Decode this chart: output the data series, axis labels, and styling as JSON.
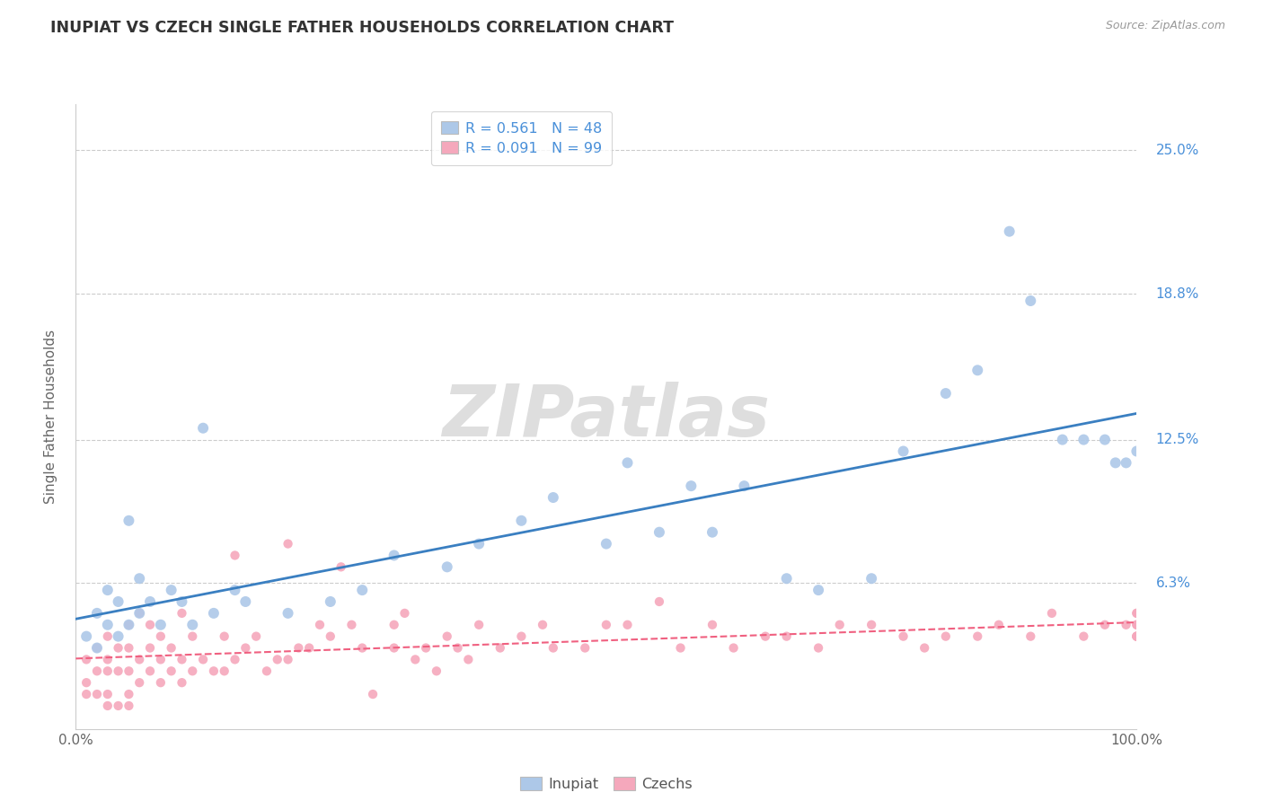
{
  "title": "INUPIAT VS CZECH SINGLE FATHER HOUSEHOLDS CORRELATION CHART",
  "source_text": "Source: ZipAtlas.com",
  "ylabel": "Single Father Households",
  "xlim": [
    0.0,
    100.0
  ],
  "ylim": [
    0.0,
    27.0
  ],
  "ytick_vals": [
    6.3,
    12.5,
    18.8,
    25.0
  ],
  "ytick_labels": [
    "6.3%",
    "12.5%",
    "18.8%",
    "25.0%"
  ],
  "xtick_vals": [
    0,
    100
  ],
  "xtick_labels": [
    "0.0%",
    "100.0%"
  ],
  "inupiat_color": "#adc8e8",
  "czech_color": "#f5a8bc",
  "inupiat_line_color": "#3a7fc1",
  "czech_line_color": "#f06080",
  "legend_R_inupiat": "R = 0.561",
  "legend_N_inupiat": "N = 48",
  "legend_R_czech": "R = 0.091",
  "legend_N_czech": "N = 99",
  "legend_label_inupiat": "Inupiat",
  "legend_label_czech": "Czechs",
  "watermark": "ZIPatlas",
  "background_color": "#ffffff",
  "grid_color": "#cccccc",
  "inupiat_x": [
    1,
    2,
    2,
    3,
    3,
    4,
    4,
    5,
    5,
    6,
    6,
    7,
    8,
    9,
    10,
    11,
    12,
    13,
    15,
    16,
    20,
    24,
    27,
    30,
    35,
    38,
    42,
    45,
    50,
    52,
    55,
    58,
    60,
    63,
    67,
    70,
    75,
    78,
    82,
    85,
    88,
    90,
    93,
    95,
    97,
    98,
    99,
    100
  ],
  "inupiat_y": [
    4.0,
    5.0,
    3.5,
    6.0,
    4.5,
    5.5,
    4.0,
    9.0,
    4.5,
    5.0,
    6.5,
    5.5,
    4.5,
    6.0,
    5.5,
    4.5,
    13.0,
    5.0,
    6.0,
    5.5,
    5.0,
    5.5,
    6.0,
    7.5,
    7.0,
    8.0,
    9.0,
    10.0,
    8.0,
    11.5,
    8.5,
    10.5,
    8.5,
    10.5,
    6.5,
    6.0,
    6.5,
    12.0,
    14.5,
    15.5,
    21.5,
    18.5,
    12.5,
    12.5,
    12.5,
    11.5,
    11.5,
    12.0
  ],
  "czech_x": [
    1,
    1,
    1,
    2,
    2,
    2,
    3,
    3,
    3,
    3,
    3,
    4,
    4,
    4,
    5,
    5,
    5,
    5,
    5,
    6,
    6,
    6,
    7,
    7,
    7,
    8,
    8,
    8,
    9,
    9,
    10,
    10,
    10,
    11,
    11,
    12,
    13,
    14,
    14,
    15,
    15,
    16,
    17,
    18,
    19,
    20,
    20,
    21,
    22,
    23,
    24,
    25,
    26,
    27,
    28,
    30,
    30,
    31,
    32,
    33,
    34,
    35,
    36,
    37,
    38,
    40,
    42,
    44,
    45,
    48,
    50,
    52,
    55,
    57,
    60,
    62,
    65,
    67,
    70,
    72,
    75,
    78,
    80,
    82,
    85,
    87,
    90,
    92,
    95,
    97,
    99,
    100,
    100,
    100,
    100,
    100,
    100,
    100,
    100
  ],
  "czech_y": [
    2.0,
    3.0,
    1.5,
    2.5,
    3.5,
    1.5,
    1.5,
    2.5,
    3.0,
    4.0,
    1.0,
    1.0,
    2.5,
    3.5,
    1.5,
    2.5,
    3.5,
    4.5,
    1.0,
    2.0,
    3.0,
    5.0,
    2.5,
    3.5,
    4.5,
    2.0,
    3.0,
    4.0,
    2.5,
    3.5,
    2.0,
    3.0,
    5.0,
    2.5,
    4.0,
    3.0,
    2.5,
    2.5,
    4.0,
    3.0,
    7.5,
    3.5,
    4.0,
    2.5,
    3.0,
    3.0,
    8.0,
    3.5,
    3.5,
    4.5,
    4.0,
    7.0,
    4.5,
    3.5,
    1.5,
    3.5,
    4.5,
    5.0,
    3.0,
    3.5,
    2.5,
    4.0,
    3.5,
    3.0,
    4.5,
    3.5,
    4.0,
    4.5,
    3.5,
    3.5,
    4.5,
    4.5,
    5.5,
    3.5,
    4.5,
    3.5,
    4.0,
    4.0,
    3.5,
    4.5,
    4.5,
    4.0,
    3.5,
    4.0,
    4.0,
    4.5,
    4.0,
    5.0,
    4.0,
    4.5,
    4.5,
    4.0,
    5.0,
    4.5,
    5.0,
    4.0,
    4.0,
    4.5,
    4.0
  ]
}
